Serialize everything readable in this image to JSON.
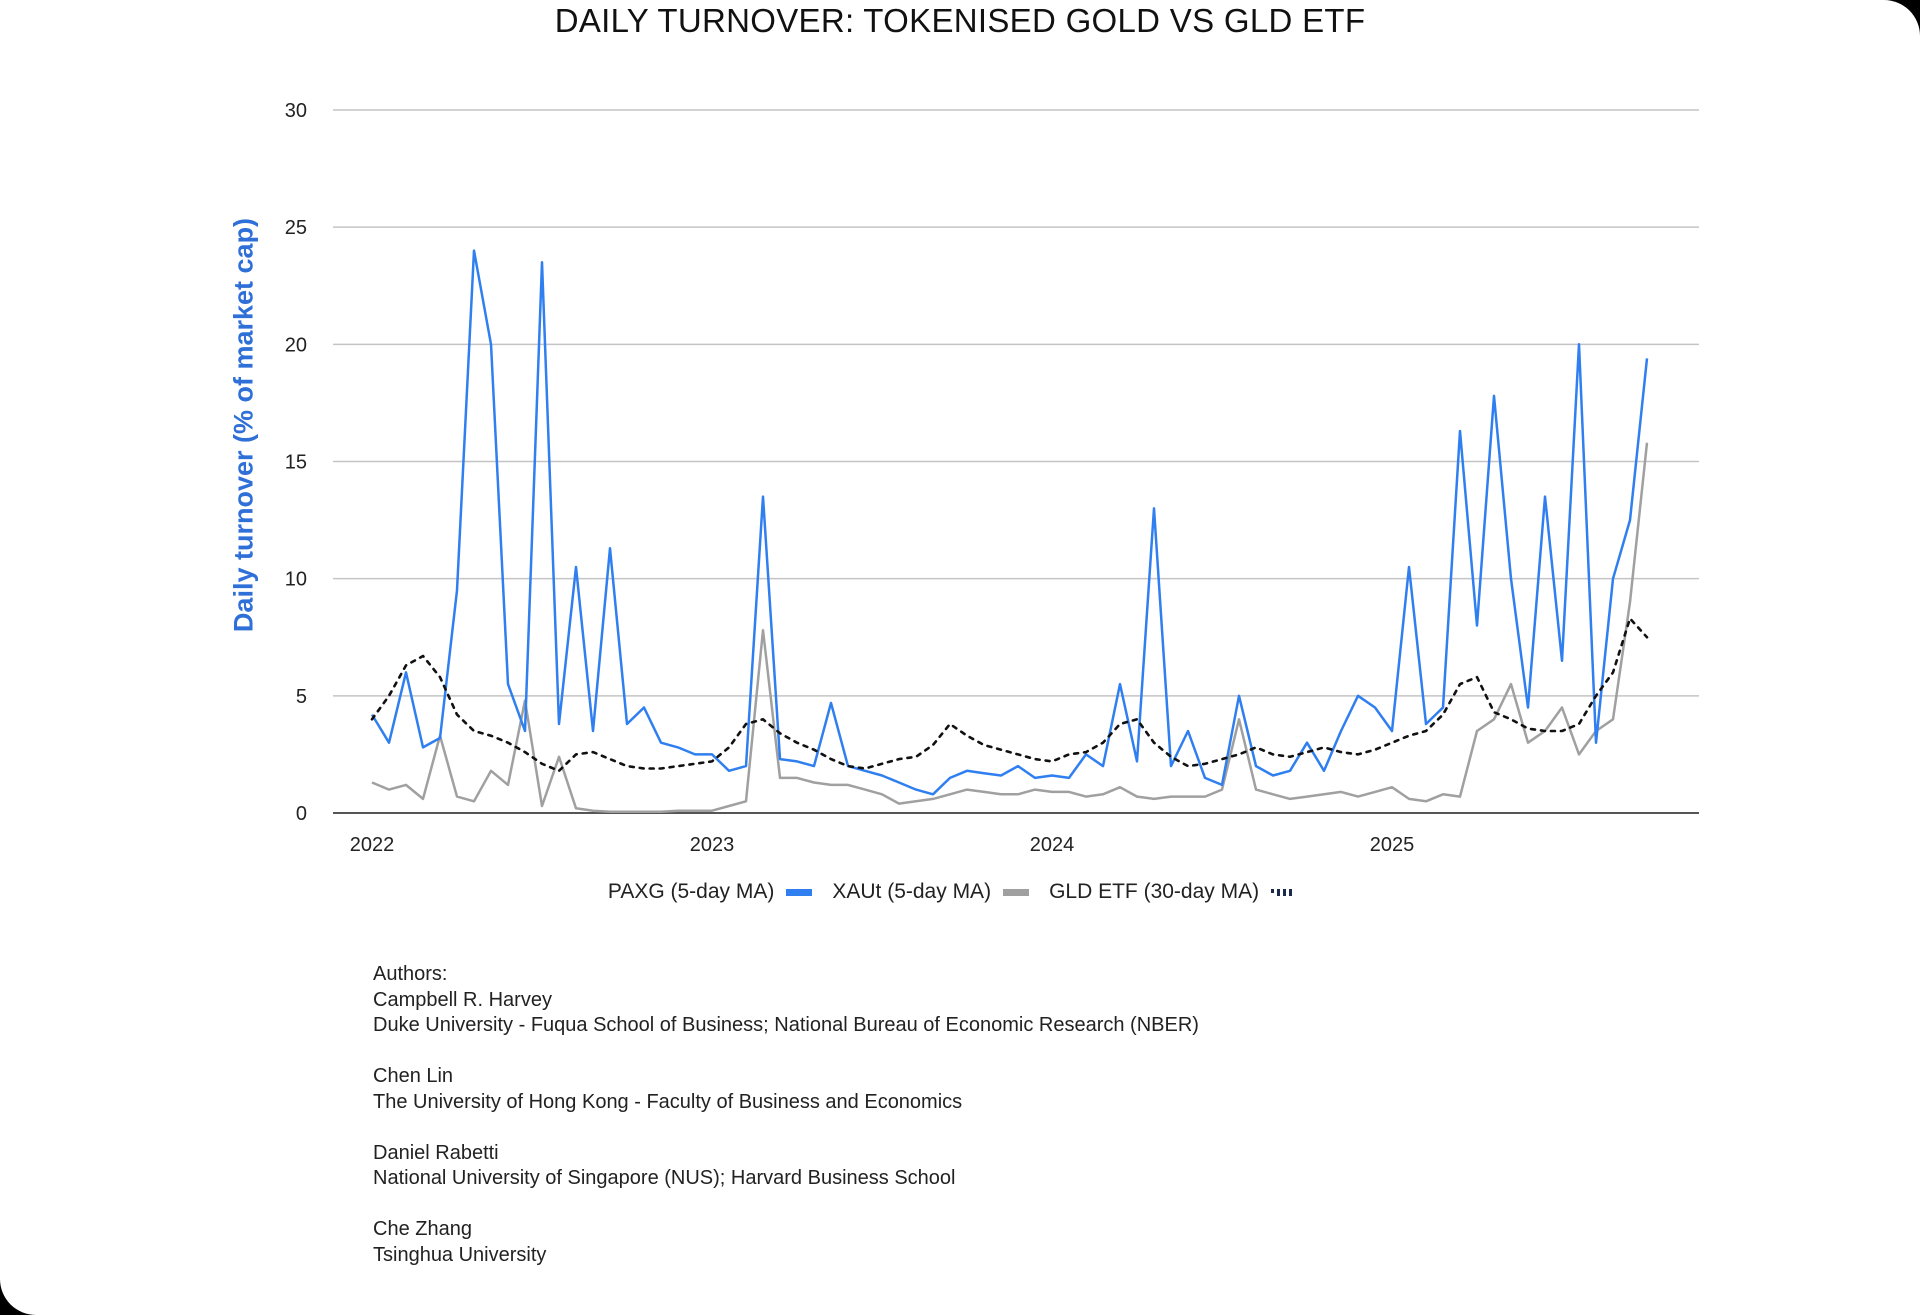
{
  "chart_data": {
    "type": "line",
    "title": "DAILY TURNOVER: TOKENISED GOLD VS GLD ETF",
    "xlabel": "",
    "ylabel": "Daily turnover (% of market cap)",
    "ylim": [
      0,
      30
    ],
    "yticks": [
      0,
      5,
      10,
      15,
      20,
      25,
      30
    ],
    "xticks": [
      "2022",
      "2023",
      "2024",
      "2025"
    ],
    "grid": true,
    "legend_position": "bottom",
    "x": [
      2022.0,
      2022.05,
      2022.1,
      2022.15,
      2022.2,
      2022.25,
      2022.3,
      2022.35,
      2022.4,
      2022.45,
      2022.5,
      2022.55,
      2022.6,
      2022.65,
      2022.7,
      2022.75,
      2022.8,
      2022.85,
      2022.9,
      2022.95,
      2023.0,
      2023.05,
      2023.1,
      2023.15,
      2023.2,
      2023.25,
      2023.3,
      2023.35,
      2023.4,
      2023.45,
      2023.5,
      2023.55,
      2023.6,
      2023.65,
      2023.7,
      2023.75,
      2023.8,
      2023.85,
      2023.9,
      2023.95,
      2024.0,
      2024.05,
      2024.1,
      2024.15,
      2024.2,
      2024.25,
      2024.3,
      2024.35,
      2024.4,
      2024.45,
      2024.5,
      2024.55,
      2024.6,
      2024.65,
      2024.7,
      2024.75,
      2024.8,
      2024.85,
      2024.9,
      2024.95,
      2025.0,
      2025.05,
      2025.1,
      2025.15,
      2025.2,
      2025.25,
      2025.3,
      2025.35,
      2025.4,
      2025.45,
      2025.5,
      2025.55,
      2025.6,
      2025.65,
      2025.7,
      2025.75
    ],
    "series": [
      {
        "name": "PAXG (5-day MA)",
        "color": "#2f7ff0",
        "style": "solid",
        "values": [
          4.2,
          3.0,
          6.0,
          2.8,
          3.2,
          9.5,
          24.0,
          20.0,
          5.5,
          3.5,
          23.5,
          3.8,
          10.5,
          3.5,
          11.3,
          3.8,
          4.5,
          3.0,
          2.8,
          2.5,
          2.5,
          1.8,
          2.0,
          13.5,
          2.3,
          2.2,
          2.0,
          4.7,
          2.0,
          1.8,
          1.6,
          1.3,
          1.0,
          0.8,
          1.5,
          1.8,
          1.7,
          1.6,
          2.0,
          1.5,
          1.6,
          1.5,
          2.5,
          2.0,
          5.5,
          2.2,
          13.0,
          2.0,
          3.5,
          1.5,
          1.2,
          5.0,
          2.0,
          1.6,
          1.8,
          3.0,
          1.8,
          3.5,
          5.0,
          4.5,
          3.5,
          10.5,
          3.8,
          4.5,
          16.3,
          8.0,
          17.8,
          10.0,
          4.5,
          13.5,
          6.5,
          20.0,
          3.0,
          10.0,
          12.5,
          19.4
        ]
      },
      {
        "name": "XAUt (5-day MA)",
        "color": "#a0a0a0",
        "style": "solid",
        "values": [
          1.3,
          1.0,
          1.2,
          0.6,
          3.3,
          0.7,
          0.5,
          1.8,
          1.2,
          4.8,
          0.3,
          2.4,
          0.2,
          0.1,
          0.05,
          0.05,
          0.05,
          0.05,
          0.1,
          0.1,
          0.1,
          0.3,
          0.5,
          7.8,
          1.5,
          1.5,
          1.3,
          1.2,
          1.2,
          1.0,
          0.8,
          0.4,
          0.5,
          0.6,
          0.8,
          1.0,
          0.9,
          0.8,
          0.8,
          1.0,
          0.9,
          0.9,
          0.7,
          0.8,
          1.1,
          0.7,
          0.6,
          0.7,
          0.7,
          0.7,
          1.0,
          4.0,
          1.0,
          0.8,
          0.6,
          0.7,
          0.8,
          0.9,
          0.7,
          0.9,
          1.1,
          0.6,
          0.5,
          0.8,
          0.7,
          3.5,
          4.0,
          5.5,
          3.0,
          3.5,
          4.5,
          2.5,
          3.5,
          4.0,
          9.0,
          15.8
        ]
      },
      {
        "name": "GLD ETF (30-day MA)",
        "color": "#111111",
        "style": "dotted",
        "values": [
          4.0,
          5.0,
          6.3,
          6.7,
          5.8,
          4.2,
          3.5,
          3.3,
          3.0,
          2.6,
          2.1,
          1.8,
          2.5,
          2.6,
          2.3,
          2.0,
          1.9,
          1.9,
          2.0,
          2.1,
          2.2,
          2.8,
          3.8,
          4.0,
          3.4,
          3.0,
          2.7,
          2.3,
          2.0,
          1.9,
          2.1,
          2.3,
          2.4,
          2.9,
          3.8,
          3.3,
          2.9,
          2.7,
          2.5,
          2.3,
          2.2,
          2.5,
          2.6,
          3.0,
          3.8,
          4.0,
          3.0,
          2.4,
          2.0,
          2.1,
          2.3,
          2.5,
          2.8,
          2.5,
          2.4,
          2.6,
          2.8,
          2.6,
          2.5,
          2.7,
          3.0,
          3.3,
          3.5,
          4.2,
          5.5,
          5.8,
          4.3,
          4.0,
          3.6,
          3.5,
          3.5,
          3.8,
          5.0,
          6.0,
          8.3,
          7.5
        ]
      }
    ]
  },
  "title": "DAILY TURNOVER: TOKENISED GOLD VS GLD ETF",
  "legend": {
    "items": [
      {
        "label": "PAXG (5-day MA)",
        "swatch": "blue-bar"
      },
      {
        "label": "XAUt (5-day MA)",
        "swatch": "grey-bar"
      },
      {
        "label": "GLD ETF (30-day MA)",
        "swatch": "dotted"
      }
    ]
  },
  "authors": {
    "heading": "Authors:",
    "list": [
      {
        "name": "Campbell R. Harvey",
        "affiliation": "Duke University - Fuqua School of Business; National Bureau of Economic Research (NBER)"
      },
      {
        "name": "Chen Lin",
        "affiliation": "The University of Hong Kong - Faculty of Business and Economics"
      },
      {
        "name": "Daniel Rabetti",
        "affiliation": "National University of Singapore (NUS); Harvard Business School"
      },
      {
        "name": "Che Zhang",
        "affiliation": "Tsinghua University"
      }
    ]
  },
  "colors": {
    "paxg": "#2f7ff0",
    "xaut": "#a0a0a0",
    "gld": "#111111",
    "ylabel": "#2f6fd8",
    "grid": "#c4c4c4"
  }
}
